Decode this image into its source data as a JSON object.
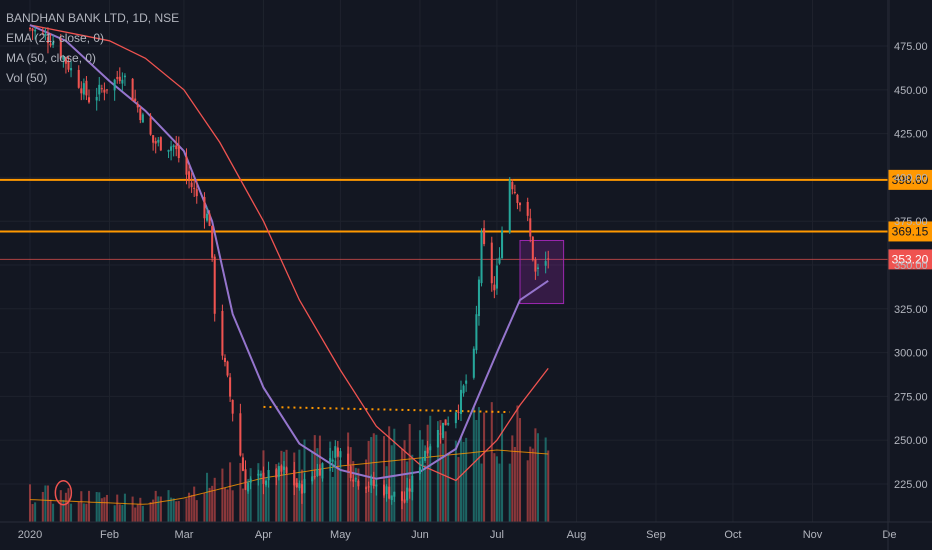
{
  "legend": {
    "symbol": "BANDHAN BANK LTD, 1D, NSE",
    "ema": "EMA (21, close, 0)",
    "ma": "MA (50, close, 0)",
    "vol": "Vol (50)"
  },
  "colors": {
    "background": "#131722",
    "grid": "#1e222d",
    "up": "#26a69a",
    "down": "#ef5350",
    "ema": "#9575cd",
    "ma": "#ef5350",
    "level": "#ff9800",
    "volume_ma": "#ff9800",
    "box": "#9c27b0",
    "text": "#b2b5be"
  },
  "chart_data": {
    "type": "candlestick",
    "x_range": [
      "2020-01-01",
      "2020-12-02"
    ],
    "x_ticks": [
      {
        "date": "2020-01-01",
        "label": "2020"
      },
      {
        "date": "2020-02-01",
        "label": "Feb"
      },
      {
        "date": "2020-03-01",
        "label": "Mar"
      },
      {
        "date": "2020-04-01",
        "label": "Apr"
      },
      {
        "date": "2020-05-01",
        "label": "May"
      },
      {
        "date": "2020-06-01",
        "label": "Jun"
      },
      {
        "date": "2020-07-01",
        "label": "Jul"
      },
      {
        "date": "2020-08-01",
        "label": "Aug"
      },
      {
        "date": "2020-09-01",
        "label": "Sep"
      },
      {
        "date": "2020-10-01",
        "label": "Oct"
      },
      {
        "date": "2020-11-01",
        "label": "Nov"
      },
      {
        "date": "2020-12-01",
        "label": "De"
      }
    ],
    "y_range": [
      213,
      487
    ],
    "y_ticks": [
      "225.00",
      "250.00",
      "275.00",
      "300.00",
      "325.00",
      "350.00",
      "375.00",
      "400.00",
      "425.00",
      "450.00",
      "475.00"
    ],
    "price_levels": [
      {
        "value": 398.6,
        "label": "398.60"
      },
      {
        "value": 369.15,
        "label": "369.15"
      }
    ],
    "last_price": {
      "value": 353.2,
      "label": "353.20"
    },
    "ohlc_key_points": [
      {
        "date": "2020-01-01",
        "price": 485
      },
      {
        "date": "2020-01-10",
        "price": 478
      },
      {
        "date": "2020-01-24",
        "price": 445
      },
      {
        "date": "2020-02-03",
        "price": 455
      },
      {
        "date": "2020-02-06",
        "price": 460
      },
      {
        "date": "2020-02-18",
        "price": 420
      },
      {
        "date": "2020-02-26",
        "price": 418
      },
      {
        "date": "2020-03-04",
        "price": 395
      },
      {
        "date": "2020-03-11",
        "price": 375
      },
      {
        "date": "2020-03-13",
        "price": 325
      },
      {
        "date": "2020-03-19",
        "price": 275
      },
      {
        "date": "2020-03-25",
        "price": 225
      },
      {
        "date": "2020-04-09",
        "price": 232
      },
      {
        "date": "2020-04-15",
        "price": 222
      },
      {
        "date": "2020-04-30",
        "price": 245
      },
      {
        "date": "2020-05-07",
        "price": 228
      },
      {
        "date": "2020-05-18",
        "price": 222
      },
      {
        "date": "2020-05-26",
        "price": 215
      },
      {
        "date": "2020-06-03",
        "price": 245
      },
      {
        "date": "2020-06-16",
        "price": 270
      },
      {
        "date": "2020-06-22",
        "price": 298
      },
      {
        "date": "2020-06-25",
        "price": 365
      },
      {
        "date": "2020-06-30",
        "price": 335
      },
      {
        "date": "2020-07-03",
        "price": 370
      },
      {
        "date": "2020-07-06",
        "price": 400
      },
      {
        "date": "2020-07-13",
        "price": 375
      },
      {
        "date": "2020-07-16",
        "price": 345
      },
      {
        "date": "2020-07-21",
        "price": 353.2
      }
    ],
    "ema21": [
      {
        "date": "2020-01-01",
        "value": 487
      },
      {
        "date": "2020-01-15",
        "value": 478
      },
      {
        "date": "2020-02-01",
        "value": 455
      },
      {
        "date": "2020-02-15",
        "value": 438
      },
      {
        "date": "2020-03-01",
        "value": 415
      },
      {
        "date": "2020-03-12",
        "value": 375
      },
      {
        "date": "2020-03-20",
        "value": 322
      },
      {
        "date": "2020-04-01",
        "value": 280
      },
      {
        "date": "2020-04-15",
        "value": 248
      },
      {
        "date": "2020-05-01",
        "value": 233
      },
      {
        "date": "2020-05-15",
        "value": 228
      },
      {
        "date": "2020-06-01",
        "value": 232
      },
      {
        "date": "2020-06-15",
        "value": 245
      },
      {
        "date": "2020-07-01",
        "value": 300
      },
      {
        "date": "2020-07-10",
        "value": 330
      },
      {
        "date": "2020-07-21",
        "value": 341
      }
    ],
    "ma50": [
      {
        "date": "2020-01-01",
        "value": 487
      },
      {
        "date": "2020-02-01",
        "value": 478
      },
      {
        "date": "2020-02-15",
        "value": 468
      },
      {
        "date": "2020-03-01",
        "value": 450
      },
      {
        "date": "2020-03-15",
        "value": 420
      },
      {
        "date": "2020-04-01",
        "value": 375
      },
      {
        "date": "2020-04-15",
        "value": 330
      },
      {
        "date": "2020-05-01",
        "value": 290
      },
      {
        "date": "2020-05-15",
        "value": 258
      },
      {
        "date": "2020-06-01",
        "value": 236
      },
      {
        "date": "2020-06-15",
        "value": 227
      },
      {
        "date": "2020-07-01",
        "value": 250
      },
      {
        "date": "2020-07-10",
        "value": 270
      },
      {
        "date": "2020-07-21",
        "value": 291
      }
    ],
    "volume_ma_key_points": [
      {
        "date": "2020-01-01",
        "value": 0.28
      },
      {
        "date": "2020-02-15",
        "value": 0.22
      },
      {
        "date": "2020-03-01",
        "value": 0.3
      },
      {
        "date": "2020-04-01",
        "value": 0.55
      },
      {
        "date": "2020-05-01",
        "value": 0.7
      },
      {
        "date": "2020-06-01",
        "value": 0.8
      },
      {
        "date": "2020-07-01",
        "value": 0.9
      },
      {
        "date": "2020-07-21",
        "value": 0.85
      }
    ],
    "annotations": {
      "dotted_trendline": {
        "from": {
          "date": "2020-04-01",
          "price": 269
        },
        "to": {
          "date": "2020-07-06",
          "price": 266
        }
      },
      "consolidation_box": {
        "from_date": "2020-07-10",
        "to_date": "2020-07-27",
        "top": 364,
        "bottom": 328
      },
      "circle_marker": {
        "date": "2020-01-14",
        "price": 220
      }
    }
  }
}
